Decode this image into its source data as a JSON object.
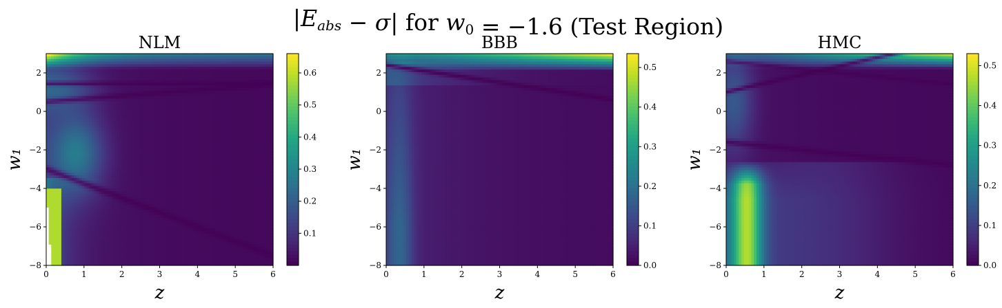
{
  "figure": {
    "title": "|E_abs − σ| for w₀ = −1.6 (Test Region)"
  },
  "chart_data": [
    {
      "type": "heatmap",
      "title": "NLM",
      "xlabel": "z",
      "ylabel": "w₁",
      "xlim": [
        0,
        6
      ],
      "ylim": [
        -8,
        3
      ],
      "xticks": [
        "0",
        "1",
        "2",
        "3",
        "4",
        "5",
        "6"
      ],
      "yticks": [
        "−8",
        "−6",
        "−4",
        "−2",
        "0",
        "2"
      ],
      "colorbar": {
        "range": [
          0.0,
          0.66
        ],
        "ticks": [
          "0.1",
          "0.2",
          "0.3",
          "0.4",
          "0.5",
          "0.6"
        ],
        "tick_values": [
          0.1,
          0.2,
          0.3,
          0.4,
          0.5,
          0.6
        ]
      },
      "colormap": "viridis",
      "grid": false
    },
    {
      "type": "heatmap",
      "title": "BBB",
      "xlabel": "z",
      "ylabel": "w₁",
      "xlim": [
        0,
        6
      ],
      "ylim": [
        -8,
        3
      ],
      "xticks": [
        "0",
        "1",
        "2",
        "3",
        "4",
        "5",
        "6"
      ],
      "yticks": [
        "−8",
        "−6",
        "−4",
        "−2",
        "0",
        "2"
      ],
      "colorbar": {
        "range": [
          0.0,
          0.535
        ],
        "ticks": [
          "0.0",
          "0.1",
          "0.2",
          "0.3",
          "0.4",
          "0.5"
        ],
        "tick_values": [
          0.0,
          0.1,
          0.2,
          0.3,
          0.4,
          0.5
        ]
      },
      "colormap": "viridis",
      "grid": false
    },
    {
      "type": "heatmap",
      "title": "HMC",
      "xlabel": "z",
      "ylabel": "w₁",
      "xlim": [
        0,
        6
      ],
      "ylim": [
        -8,
        3
      ],
      "xticks": [
        "0",
        "1",
        "2",
        "3",
        "4",
        "5",
        "6"
      ],
      "yticks": [
        "−8",
        "−6",
        "−4",
        "−2",
        "0",
        "2"
      ],
      "colorbar": {
        "range": [
          0.0,
          0.53
        ],
        "ticks": [
          "0.0",
          "0.1",
          "0.2",
          "0.3",
          "0.4",
          "0.5"
        ],
        "tick_values": [
          0.0,
          0.1,
          0.2,
          0.3,
          0.4,
          0.5
        ]
      },
      "colormap": "viridis",
      "grid": false
    }
  ]
}
